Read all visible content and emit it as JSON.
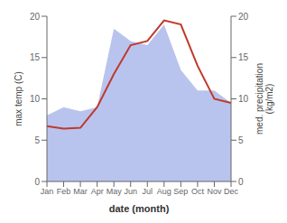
{
  "chart_data": {
    "type": "line",
    "xlabel": "date (month)",
    "ylabel": "max temp (C)",
    "y2label": "med. precipitation\n(kg/m2)",
    "categories": [
      "Jan",
      "Feb",
      "Mar",
      "Apr",
      "May",
      "Jun",
      "Jul",
      "Aug",
      "Sep",
      "Oct",
      "Nov",
      "Dec"
    ],
    "series": [
      {
        "type": "area",
        "color": "#b8c4ee",
        "axis": "y2",
        "values": [
          8.0,
          9.0,
          8.5,
          9.0,
          18.5,
          17.0,
          16.5,
          19.0,
          13.5,
          11.0,
          11.0,
          9.5
        ]
      },
      {
        "type": "line",
        "color": "#c0392b",
        "values": [
          6.7,
          6.4,
          6.5,
          9.0,
          13.0,
          16.5,
          17.0,
          19.5,
          19.0,
          14.0,
          10.0,
          9.5
        ]
      }
    ],
    "ylim": [
      0,
      20
    ],
    "yticks": [
      0,
      5,
      10,
      15,
      20
    ],
    "y2lim": [
      0,
      20
    ],
    "y2ticks": [
      0,
      5,
      10,
      15,
      20
    ],
    "grid": false
  }
}
